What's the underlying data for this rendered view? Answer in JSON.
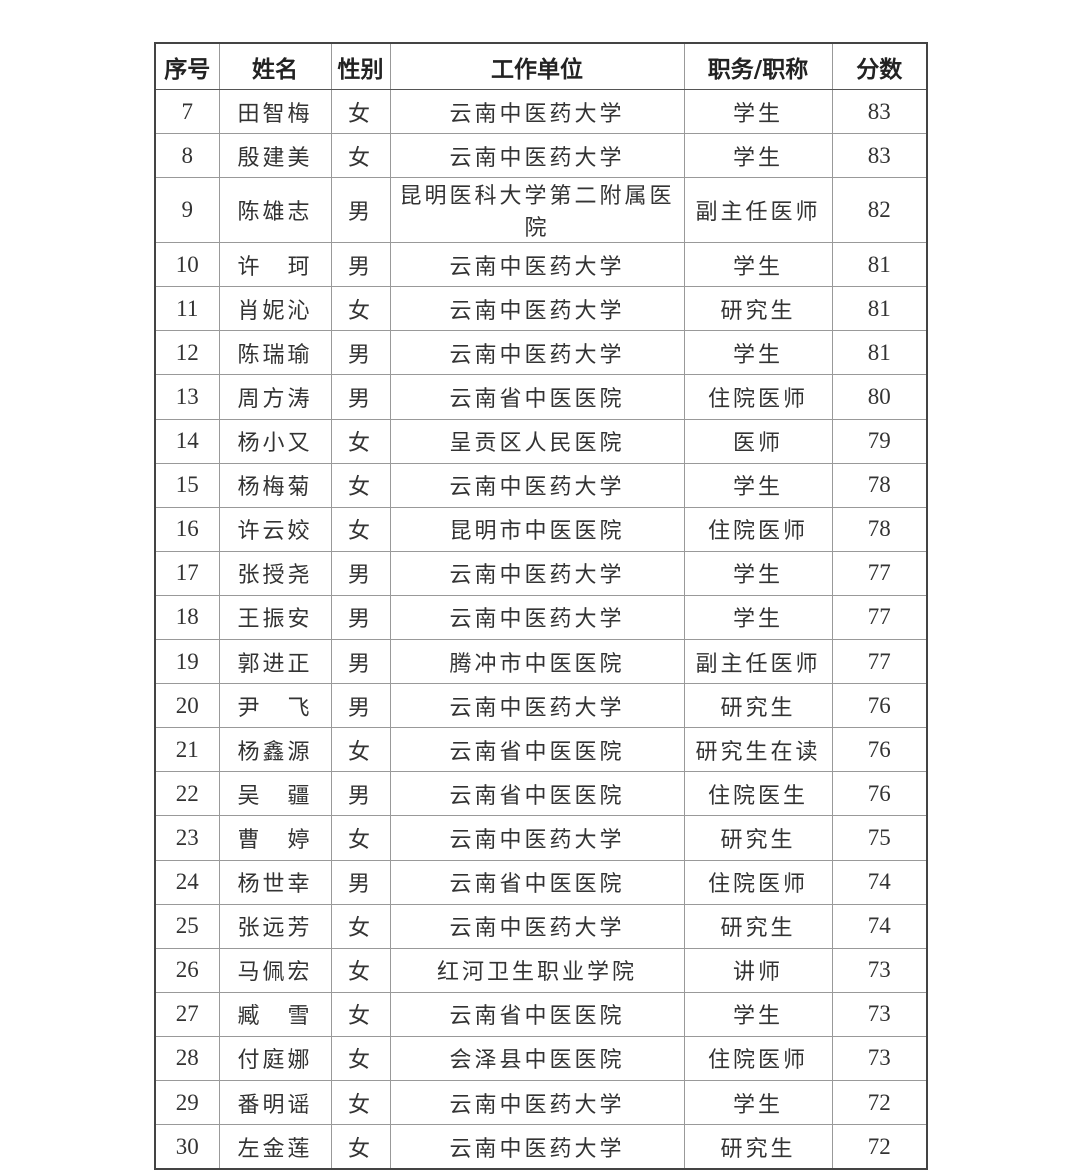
{
  "table": {
    "headers": [
      "序号",
      "姓名",
      "性别",
      "工作单位",
      "职务/职称",
      "分数"
    ],
    "rows": [
      [
        "7",
        "田智梅",
        "女",
        "云南中医药大学",
        "学生",
        "83"
      ],
      [
        "8",
        "殷建美",
        "女",
        "云南中医药大学",
        "学生",
        "83"
      ],
      [
        "9",
        "陈雄志",
        "男",
        "昆明医科大学第二附属医院",
        "副主任医师",
        "82"
      ],
      [
        "10",
        "许　珂",
        "男",
        "云南中医药大学",
        "学生",
        "81"
      ],
      [
        "11",
        "肖妮沁",
        "女",
        "云南中医药大学",
        "研究生",
        "81"
      ],
      [
        "12",
        "陈瑞瑜",
        "男",
        "云南中医药大学",
        "学生",
        "81"
      ],
      [
        "13",
        "周方涛",
        "男",
        "云南省中医医院",
        "住院医师",
        "80"
      ],
      [
        "14",
        "杨小又",
        "女",
        "呈贡区人民医院",
        "医师",
        "79"
      ],
      [
        "15",
        "杨梅菊",
        "女",
        "云南中医药大学",
        "学生",
        "78"
      ],
      [
        "16",
        "许云姣",
        "女",
        "昆明市中医医院",
        "住院医师",
        "78"
      ],
      [
        "17",
        "张授尧",
        "男",
        "云南中医药大学",
        "学生",
        "77"
      ],
      [
        "18",
        "王振安",
        "男",
        "云南中医药大学",
        "学生",
        "77"
      ],
      [
        "19",
        "郭进正",
        "男",
        "腾冲市中医医院",
        "副主任医师",
        "77"
      ],
      [
        "20",
        "尹　飞",
        "男",
        "云南中医药大学",
        "研究生",
        "76"
      ],
      [
        "21",
        "杨鑫源",
        "女",
        "云南省中医医院",
        "研究生在读",
        "76"
      ],
      [
        "22",
        "吴　疆",
        "男",
        "云南省中医医院",
        "住院医生",
        "76"
      ],
      [
        "23",
        "曹　婷",
        "女",
        "云南中医药大学",
        "研究生",
        "75"
      ],
      [
        "24",
        "杨世幸",
        "男",
        "云南省中医医院",
        "住院医师",
        "74"
      ],
      [
        "25",
        "张远芳",
        "女",
        "云南中医药大学",
        "研究生",
        "74"
      ],
      [
        "26",
        "马佩宏",
        "女",
        "红河卫生职业学院",
        "讲师",
        "73"
      ],
      [
        "27",
        "臧　雪",
        "女",
        "云南省中医医院",
        "学生",
        "73"
      ],
      [
        "28",
        "付庭娜",
        "女",
        "会泽县中医医院",
        "住院医师",
        "73"
      ],
      [
        "29",
        "番明谣",
        "女",
        "云南中医药大学",
        "学生",
        "72"
      ],
      [
        "30",
        "左金莲",
        "女",
        "云南中医药大学",
        "研究生",
        "72"
      ]
    ]
  }
}
